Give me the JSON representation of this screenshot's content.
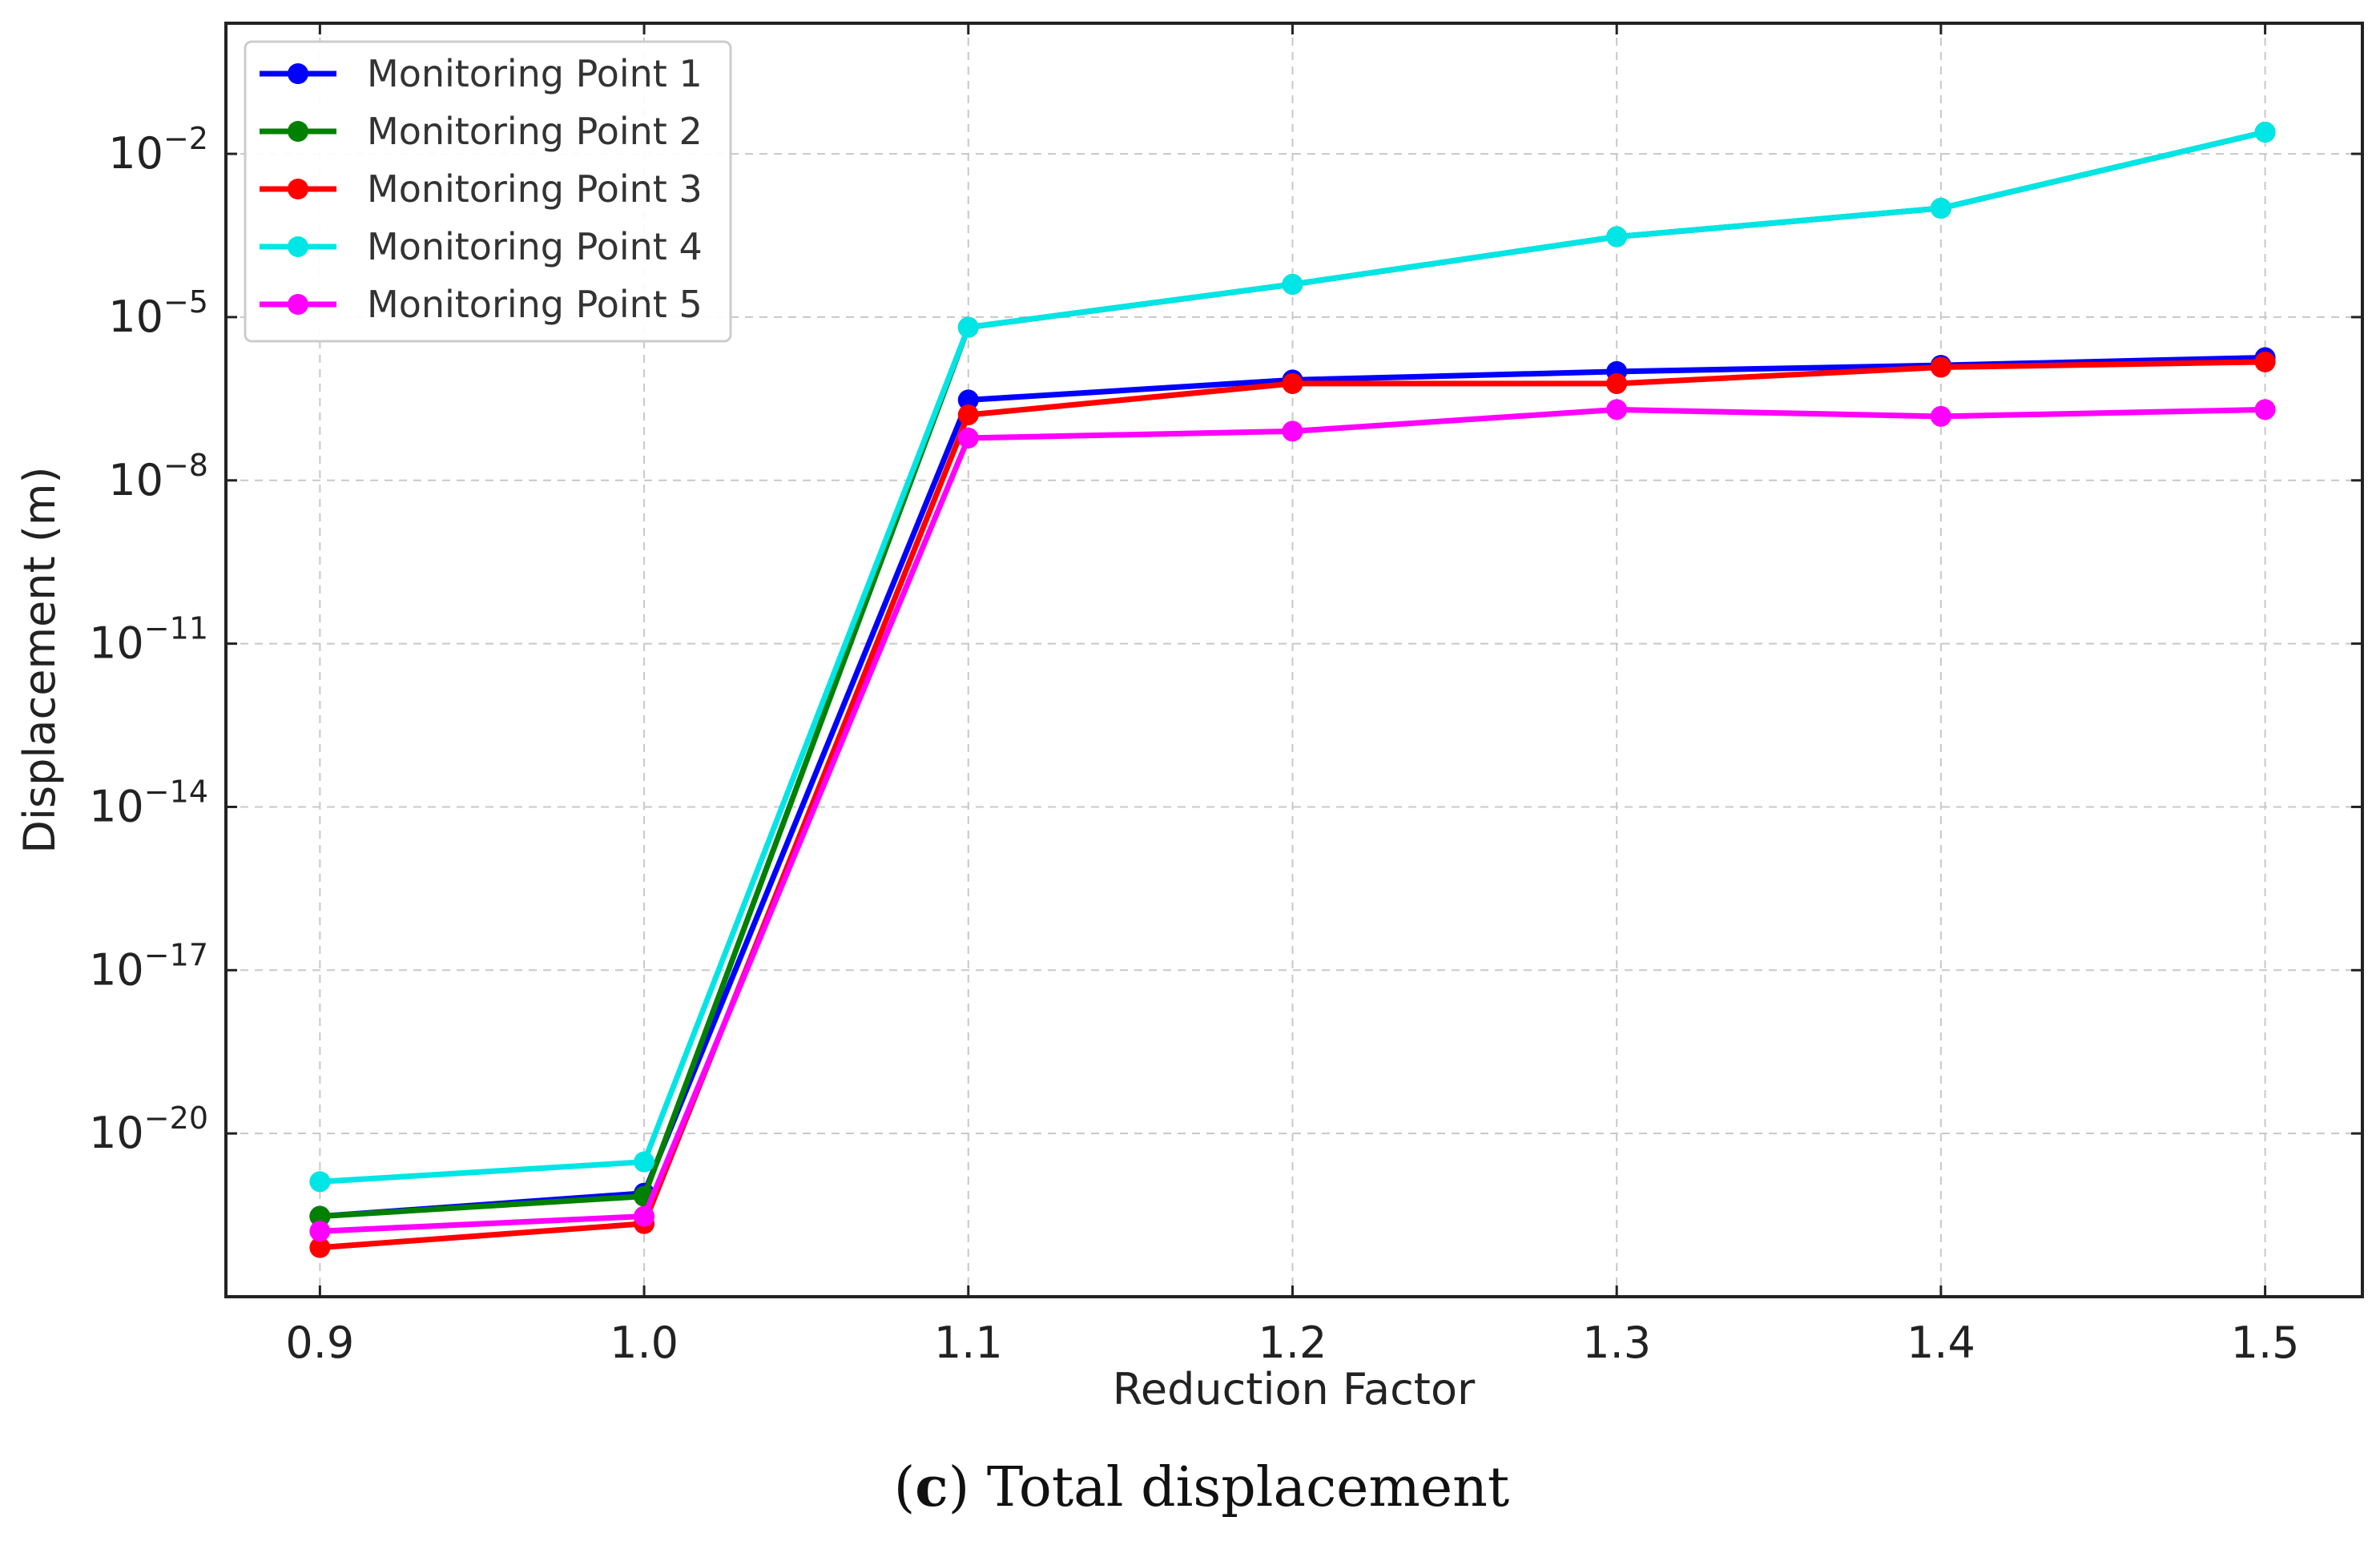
{
  "chart_data": {
    "type": "line",
    "xlabel": "Reduction Factor",
    "ylabel": "Displacement (m)",
    "yscale": "log",
    "x": [
      0.9,
      1.0,
      1.1,
      1.2,
      1.3,
      1.4,
      1.5
    ],
    "x_tick_labels": [
      "0.9",
      "1.0",
      "1.1",
      "1.2",
      "1.3",
      "1.4",
      "1.5"
    ],
    "xlim": [
      0.871,
      1.53
    ],
    "ylim_log10": [
      -23,
      0.4
    ],
    "y_ticks": [
      {
        "base": "10",
        "exponent": "−2",
        "value_log10": -2
      },
      {
        "base": "10",
        "exponent": "−5",
        "value_log10": -5
      },
      {
        "base": "10",
        "exponent": "−8",
        "value_log10": -8
      },
      {
        "base": "10",
        "exponent": "−11",
        "value_log10": -11
      },
      {
        "base": "10",
        "exponent": "−14",
        "value_log10": -14
      },
      {
        "base": "10",
        "exponent": "−17",
        "value_log10": -17
      },
      {
        "base": "10",
        "exponent": "−20",
        "value_log10": -20
      }
    ],
    "grid": true,
    "legend_position": "top-left",
    "series": [
      {
        "name": "Monitoring Point 1",
        "color": "#0000ff",
        "values": [
          3e-22,
          8e-22,
          3e-07,
          7e-07,
          1e-06,
          1.3e-06,
          1.8e-06
        ]
      },
      {
        "name": "Monitoring Point 2",
        "color": "#008000",
        "values": [
          3e-22,
          7e-22,
          6.5e-06,
          4e-05,
          0.0003,
          0.001,
          0.025
        ]
      },
      {
        "name": "Monitoring Point 3",
        "color": "#ff0000",
        "values": [
          8e-23,
          2.2e-22,
          1.6e-07,
          6e-07,
          6e-07,
          1.2e-06,
          1.5e-06
        ]
      },
      {
        "name": "Monitoring Point 4",
        "color": "#00e5e5",
        "values": [
          1.3e-21,
          3e-21,
          6.5e-06,
          4e-05,
          0.0003,
          0.001,
          0.025
        ]
      },
      {
        "name": "Monitoring Point 5",
        "color": "#ff00ff",
        "values": [
          1.6e-22,
          3e-22,
          6e-08,
          8e-08,
          2e-07,
          1.5e-07,
          2e-07
        ]
      }
    ]
  },
  "caption": {
    "open_paren": "(",
    "letter": "c",
    "close_paren": ")",
    "text": " Total displacement"
  }
}
